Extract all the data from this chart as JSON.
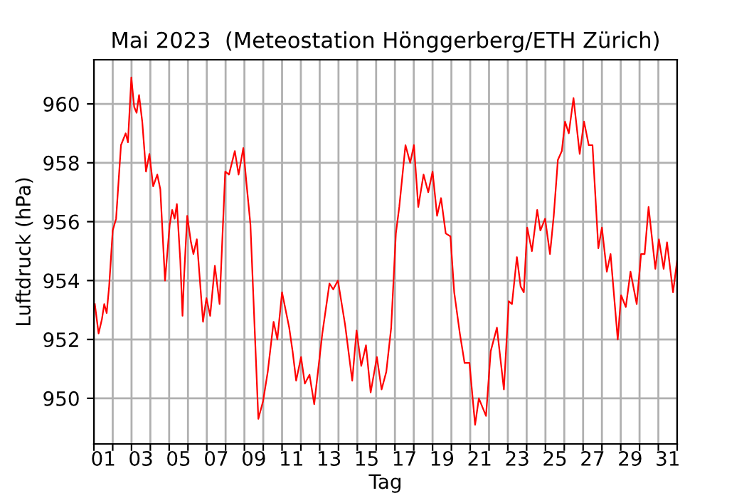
{
  "chart_data": {
    "type": "line",
    "title": "Mai 2023  (Meteostation Hönggerberg/ETH Zürich)",
    "xlabel": "Tag",
    "ylabel": "Luftdruck (hPa)",
    "series": [
      {
        "color": "#ff0000",
        "x": [
          1.05,
          1.25,
          1.43,
          1.55,
          1.68,
          1.81,
          2.0,
          2.18,
          2.44,
          2.69,
          2.81,
          2.99,
          3.14,
          3.27,
          3.4,
          3.57,
          3.77,
          3.95,
          4.15,
          4.37,
          4.53,
          4.78,
          5.03,
          5.16,
          5.29,
          5.41,
          5.59,
          5.71,
          5.79,
          5.96,
          6.16,
          6.29,
          6.47,
          6.8,
          6.98,
          7.18,
          7.43,
          7.68,
          7.98,
          8.18,
          8.49,
          8.69,
          8.94,
          9.11,
          9.32,
          9.74,
          9.99,
          10.24,
          10.55,
          10.75,
          11.0,
          11.38,
          11.56,
          11.75,
          12.01,
          12.21,
          12.46,
          12.71,
          13.14,
          13.52,
          13.72,
          13.97,
          14.35,
          14.73,
          14.96,
          15.21,
          15.46,
          15.71,
          16.04,
          16.29,
          16.54,
          16.8,
          17.05,
          17.23,
          17.56,
          17.81,
          18.01,
          18.24,
          18.52,
          18.77,
          19.0,
          19.24,
          19.45,
          19.7,
          19.95,
          20.15,
          20.45,
          20.7,
          20.96,
          21.26,
          21.46,
          21.84,
          22.09,
          22.42,
          22.79,
          23.05,
          23.22,
          23.48,
          23.68,
          23.85,
          24.03,
          24.28,
          24.56,
          24.73,
          24.98,
          25.24,
          25.44,
          25.66,
          25.87,
          26.04,
          26.24,
          26.49,
          26.82,
          27.05,
          27.3,
          27.5,
          27.81,
          28.0,
          28.26,
          28.46,
          28.84,
          29.02,
          29.27,
          29.52,
          29.85,
          30.08,
          30.27,
          30.48,
          30.84,
          31.03,
          31.28,
          31.46,
          31.78,
          32.0
        ],
        "values": [
          953.2,
          952.2,
          952.7,
          953.2,
          952.9,
          953.8,
          955.7,
          956.1,
          958.6,
          959.0,
          958.7,
          960.9,
          959.9,
          959.7,
          960.3,
          959.4,
          957.7,
          958.3,
          957.2,
          957.6,
          957.1,
          954.0,
          955.9,
          956.4,
          956.1,
          956.6,
          954.7,
          952.8,
          954.1,
          956.2,
          955.3,
          954.9,
          955.4,
          952.6,
          953.4,
          952.8,
          954.5,
          953.2,
          957.7,
          957.6,
          958.4,
          957.6,
          958.5,
          957.3,
          955.9,
          949.3,
          949.9,
          950.9,
          952.6,
          952.0,
          953.6,
          952.4,
          951.6,
          950.6,
          951.4,
          950.5,
          950.8,
          949.8,
          952.2,
          953.9,
          953.7,
          954.0,
          952.5,
          950.6,
          952.3,
          951.1,
          951.8,
          950.2,
          951.4,
          950.3,
          950.9,
          952.4,
          955.6,
          956.5,
          958.6,
          958.0,
          958.6,
          956.5,
          957.6,
          957.0,
          957.7,
          956.2,
          956.8,
          955.6,
          955.5,
          953.6,
          952.2,
          951.2,
          951.2,
          949.1,
          950.0,
          949.4,
          951.6,
          952.4,
          950.3,
          953.3,
          953.2,
          954.8,
          953.8,
          953.6,
          955.8,
          955.0,
          956.4,
          955.7,
          956.1,
          954.9,
          956.2,
          958.1,
          958.4,
          959.4,
          959.0,
          960.2,
          958.3,
          959.4,
          958.6,
          958.6,
          955.1,
          955.8,
          954.3,
          954.9,
          952.0,
          953.5,
          953.1,
          954.3,
          953.2,
          954.9,
          954.9,
          956.5,
          954.4,
          955.4,
          954.4,
          955.3,
          953.6,
          954.7
        ]
      }
    ],
    "xlim": [
      1,
      32
    ],
    "xticks": [
      {
        "value": 1,
        "label": null
      },
      {
        "value": 1.5,
        "label": "01"
      },
      {
        "value": 2,
        "label": null
      },
      {
        "value": 3,
        "label": null
      },
      {
        "value": 3.5,
        "label": "03"
      },
      {
        "value": 4,
        "label": null
      },
      {
        "value": 5,
        "label": null
      },
      {
        "value": 5.5,
        "label": "05"
      },
      {
        "value": 6,
        "label": null
      },
      {
        "value": 7,
        "label": null
      },
      {
        "value": 7.5,
        "label": "07"
      },
      {
        "value": 8,
        "label": null
      },
      {
        "value": 9,
        "label": null
      },
      {
        "value": 9.5,
        "label": "09"
      },
      {
        "value": 10,
        "label": null
      },
      {
        "value": 11,
        "label": null
      },
      {
        "value": 11.5,
        "label": "11"
      },
      {
        "value": 12,
        "label": null
      },
      {
        "value": 13,
        "label": null
      },
      {
        "value": 13.5,
        "label": "13"
      },
      {
        "value": 14,
        "label": null
      },
      {
        "value": 15,
        "label": null
      },
      {
        "value": 15.5,
        "label": "15"
      },
      {
        "value": 16,
        "label": null
      },
      {
        "value": 17,
        "label": null
      },
      {
        "value": 17.5,
        "label": "17"
      },
      {
        "value": 18,
        "label": null
      },
      {
        "value": 19,
        "label": null
      },
      {
        "value": 19.5,
        "label": "19"
      },
      {
        "value": 20,
        "label": null
      },
      {
        "value": 21,
        "label": null
      },
      {
        "value": 21.5,
        "label": "21"
      },
      {
        "value": 22,
        "label": null
      },
      {
        "value": 23,
        "label": null
      },
      {
        "value": 23.5,
        "label": "23"
      },
      {
        "value": 24,
        "label": null
      },
      {
        "value": 25,
        "label": null
      },
      {
        "value": 25.5,
        "label": "25"
      },
      {
        "value": 26,
        "label": null
      },
      {
        "value": 27,
        "label": null
      },
      {
        "value": 27.5,
        "label": "27"
      },
      {
        "value": 28,
        "label": null
      },
      {
        "value": 29,
        "label": null
      },
      {
        "value": 29.5,
        "label": "29"
      },
      {
        "value": 30,
        "label": null
      },
      {
        "value": 31,
        "label": null
      },
      {
        "value": 31.5,
        "label": "31"
      },
      {
        "value": 32,
        "label": null
      }
    ],
    "ylim": [
      948.45,
      961.5
    ],
    "yticks": [
      950,
      952,
      954,
      956,
      958,
      960
    ],
    "grid": true,
    "marker": "none",
    "line_style": "solid"
  }
}
